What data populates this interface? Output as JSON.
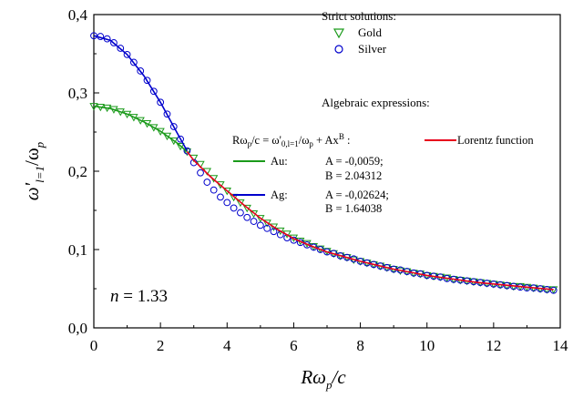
{
  "chart_data": {
    "type": "scatter",
    "xlabel_main": "Rω",
    "xlabel_sub": "p",
    "xlabel_tail": "/c",
    "ylabel_main": "ω'",
    "ylabel_sub1": "l=1",
    "ylabel_mid": "/ω",
    "ylabel_sub2": "p",
    "xlim": [
      0,
      14
    ],
    "ylim": [
      0.0,
      0.4
    ],
    "x_ticks": [
      {
        "value": 0,
        "label": "0"
      },
      {
        "value": 2,
        "label": "2"
      },
      {
        "value": 4,
        "label": "4"
      },
      {
        "value": 6,
        "label": "6"
      },
      {
        "value": 8,
        "label": "8"
      },
      {
        "value": 10,
        "label": "10"
      },
      {
        "value": 12,
        "label": "12"
      },
      {
        "value": 14,
        "label": "14"
      }
    ],
    "y_ticks": [
      {
        "value": 0.0,
        "label": "0,0"
      },
      {
        "value": 0.1,
        "label": "0,1"
      },
      {
        "value": 0.2,
        "label": "0,2"
      },
      {
        "value": 0.3,
        "label": "0,3"
      },
      {
        "value": 0.4,
        "label": "0,4"
      }
    ],
    "grid": false,
    "legend": {
      "placement": "top-right",
      "title": "Strict solutions:",
      "entries": [
        {
          "name": "Gold",
          "marker": "triangle-down",
          "color": "#1a9a1a"
        },
        {
          "name": "Silver",
          "marker": "circle",
          "color": "#0000cc"
        }
      ]
    },
    "expressions": {
      "title": "Algebraic expressions:",
      "formula_main": "Rω",
      "formula_sub": "p",
      "formula_mid": "/c = ω'",
      "formula_sub2": "0,l=1",
      "formula_mid2": "/ω",
      "formula_sub3": "p",
      "formula_tail": " + Ax",
      "formula_sup": "B",
      "formula_colon": " :",
      "lorentz_label": "Lorentz function",
      "lorentz_color": "#e8001c",
      "fits": [
        {
          "label": "Au:",
          "color": "#1a9a1a",
          "A": "A = -0,0059;",
          "B": "B = 2.04312"
        },
        {
          "label": "Ag:",
          "color": "#0000cc",
          "A": "A = -0,02624;",
          "B": "B = 1.64038"
        }
      ]
    },
    "annotation_n_label": "n",
    "annotation_n_value": " = 1.33",
    "series": [
      {
        "name": "Gold",
        "marker": "triangle-down",
        "color": "#1a9a1a",
        "x": [
          0.0,
          0.2,
          0.4,
          0.6,
          0.8,
          1.0,
          1.2,
          1.4,
          1.6,
          1.8,
          2.0,
          2.2,
          2.4,
          2.6,
          2.8,
          3.0,
          3.2,
          3.4,
          3.6,
          3.8,
          4.0,
          4.2,
          4.4,
          4.6,
          4.8,
          5.0,
          5.2,
          5.4,
          5.6,
          5.8,
          6.0,
          6.2,
          6.4,
          6.6,
          6.8,
          7.0,
          7.2,
          7.4,
          7.6,
          7.8,
          8.0,
          8.2,
          8.4,
          8.6,
          8.8,
          9.0,
          9.2,
          9.4,
          9.6,
          9.8,
          10.0,
          10.2,
          10.4,
          10.6,
          10.8,
          11.0,
          11.2,
          11.4,
          11.6,
          11.8,
          12.0,
          12.2,
          12.4,
          12.6,
          12.8,
          13.0,
          13.2,
          13.4,
          13.6,
          13.8
        ],
        "y": [
          0.283,
          0.282,
          0.281,
          0.279,
          0.276,
          0.273,
          0.269,
          0.265,
          0.261,
          0.256,
          0.251,
          0.245,
          0.239,
          0.232,
          0.225,
          0.217,
          0.209,
          0.2,
          0.191,
          0.183,
          0.175,
          0.167,
          0.16,
          0.153,
          0.146,
          0.14,
          0.134,
          0.129,
          0.124,
          0.12,
          0.115,
          0.111,
          0.108,
          0.104,
          0.101,
          0.098,
          0.095,
          0.092,
          0.09,
          0.087,
          0.085,
          0.083,
          0.081,
          0.079,
          0.077,
          0.075,
          0.073,
          0.072,
          0.07,
          0.069,
          0.067,
          0.066,
          0.065,
          0.064,
          0.062,
          0.061,
          0.06,
          0.059,
          0.058,
          0.057,
          0.056,
          0.055,
          0.054,
          0.053,
          0.053,
          0.052,
          0.051,
          0.05,
          0.049,
          0.049
        ]
      },
      {
        "name": "Silver",
        "marker": "circle",
        "color": "#0000cc",
        "x": [
          0.0,
          0.2,
          0.4,
          0.6,
          0.8,
          1.0,
          1.2,
          1.4,
          1.6,
          1.8,
          2.0,
          2.2,
          2.4,
          2.6,
          2.8,
          3.0,
          3.2,
          3.4,
          3.6,
          3.8,
          4.0,
          4.2,
          4.4,
          4.6,
          4.8,
          5.0,
          5.2,
          5.4,
          5.6,
          5.8,
          6.0,
          6.2,
          6.4,
          6.6,
          6.8,
          7.0,
          7.2,
          7.4,
          7.6,
          7.8,
          8.0,
          8.2,
          8.4,
          8.6,
          8.8,
          9.0,
          9.2,
          9.4,
          9.6,
          9.8,
          10.0,
          10.2,
          10.4,
          10.6,
          10.8,
          11.0,
          11.2,
          11.4,
          11.6,
          11.8,
          12.0,
          12.2,
          12.4,
          12.6,
          12.8,
          13.0,
          13.2,
          13.4,
          13.6,
          13.8
        ],
        "y": [
          0.373,
          0.372,
          0.369,
          0.364,
          0.357,
          0.349,
          0.339,
          0.328,
          0.316,
          0.302,
          0.288,
          0.273,
          0.257,
          0.241,
          0.226,
          0.211,
          0.198,
          0.186,
          0.176,
          0.167,
          0.16,
          0.153,
          0.147,
          0.141,
          0.136,
          0.131,
          0.127,
          0.123,
          0.119,
          0.115,
          0.112,
          0.109,
          0.106,
          0.103,
          0.1,
          0.097,
          0.095,
          0.092,
          0.09,
          0.088,
          0.085,
          0.083,
          0.081,
          0.079,
          0.077,
          0.075,
          0.074,
          0.072,
          0.07,
          0.069,
          0.067,
          0.066,
          0.065,
          0.063,
          0.062,
          0.061,
          0.06,
          0.059,
          0.058,
          0.057,
          0.056,
          0.055,
          0.054,
          0.053,
          0.052,
          0.051,
          0.051,
          0.05,
          0.049,
          0.048
        ]
      },
      {
        "name": "Au:",
        "line": true,
        "color": "#1a9a1a",
        "x": [
          0.0,
          0.5,
          1.0,
          1.5,
          2.0,
          2.5,
          2.8
        ],
        "y": [
          0.283,
          0.28,
          0.273,
          0.263,
          0.251,
          0.236,
          0.225
        ]
      },
      {
        "name": "Ag:",
        "line": true,
        "color": "#0000cc",
        "x": [
          0.0,
          0.5,
          1.0,
          1.5,
          2.0,
          2.5,
          2.8
        ],
        "y": [
          0.373,
          0.367,
          0.349,
          0.322,
          0.288,
          0.249,
          0.226
        ]
      },
      {
        "name": "Lorentz function",
        "line": true,
        "color": "#e8001c",
        "x": [
          2.8,
          3.0,
          3.5,
          4.0,
          4.5,
          5.0,
          5.5,
          6.0,
          6.5,
          7.0,
          7.5,
          8.0,
          8.5,
          9.0,
          9.5,
          10.0,
          10.5,
          11.0,
          11.5,
          12.0,
          12.5,
          13.0,
          13.5,
          13.8
        ],
        "y": [
          0.225,
          0.214,
          0.193,
          0.175,
          0.157,
          0.14,
          0.126,
          0.114,
          0.105,
          0.097,
          0.091,
          0.085,
          0.08,
          0.075,
          0.071,
          0.067,
          0.064,
          0.061,
          0.058,
          0.056,
          0.054,
          0.052,
          0.05,
          0.049
        ]
      }
    ]
  }
}
